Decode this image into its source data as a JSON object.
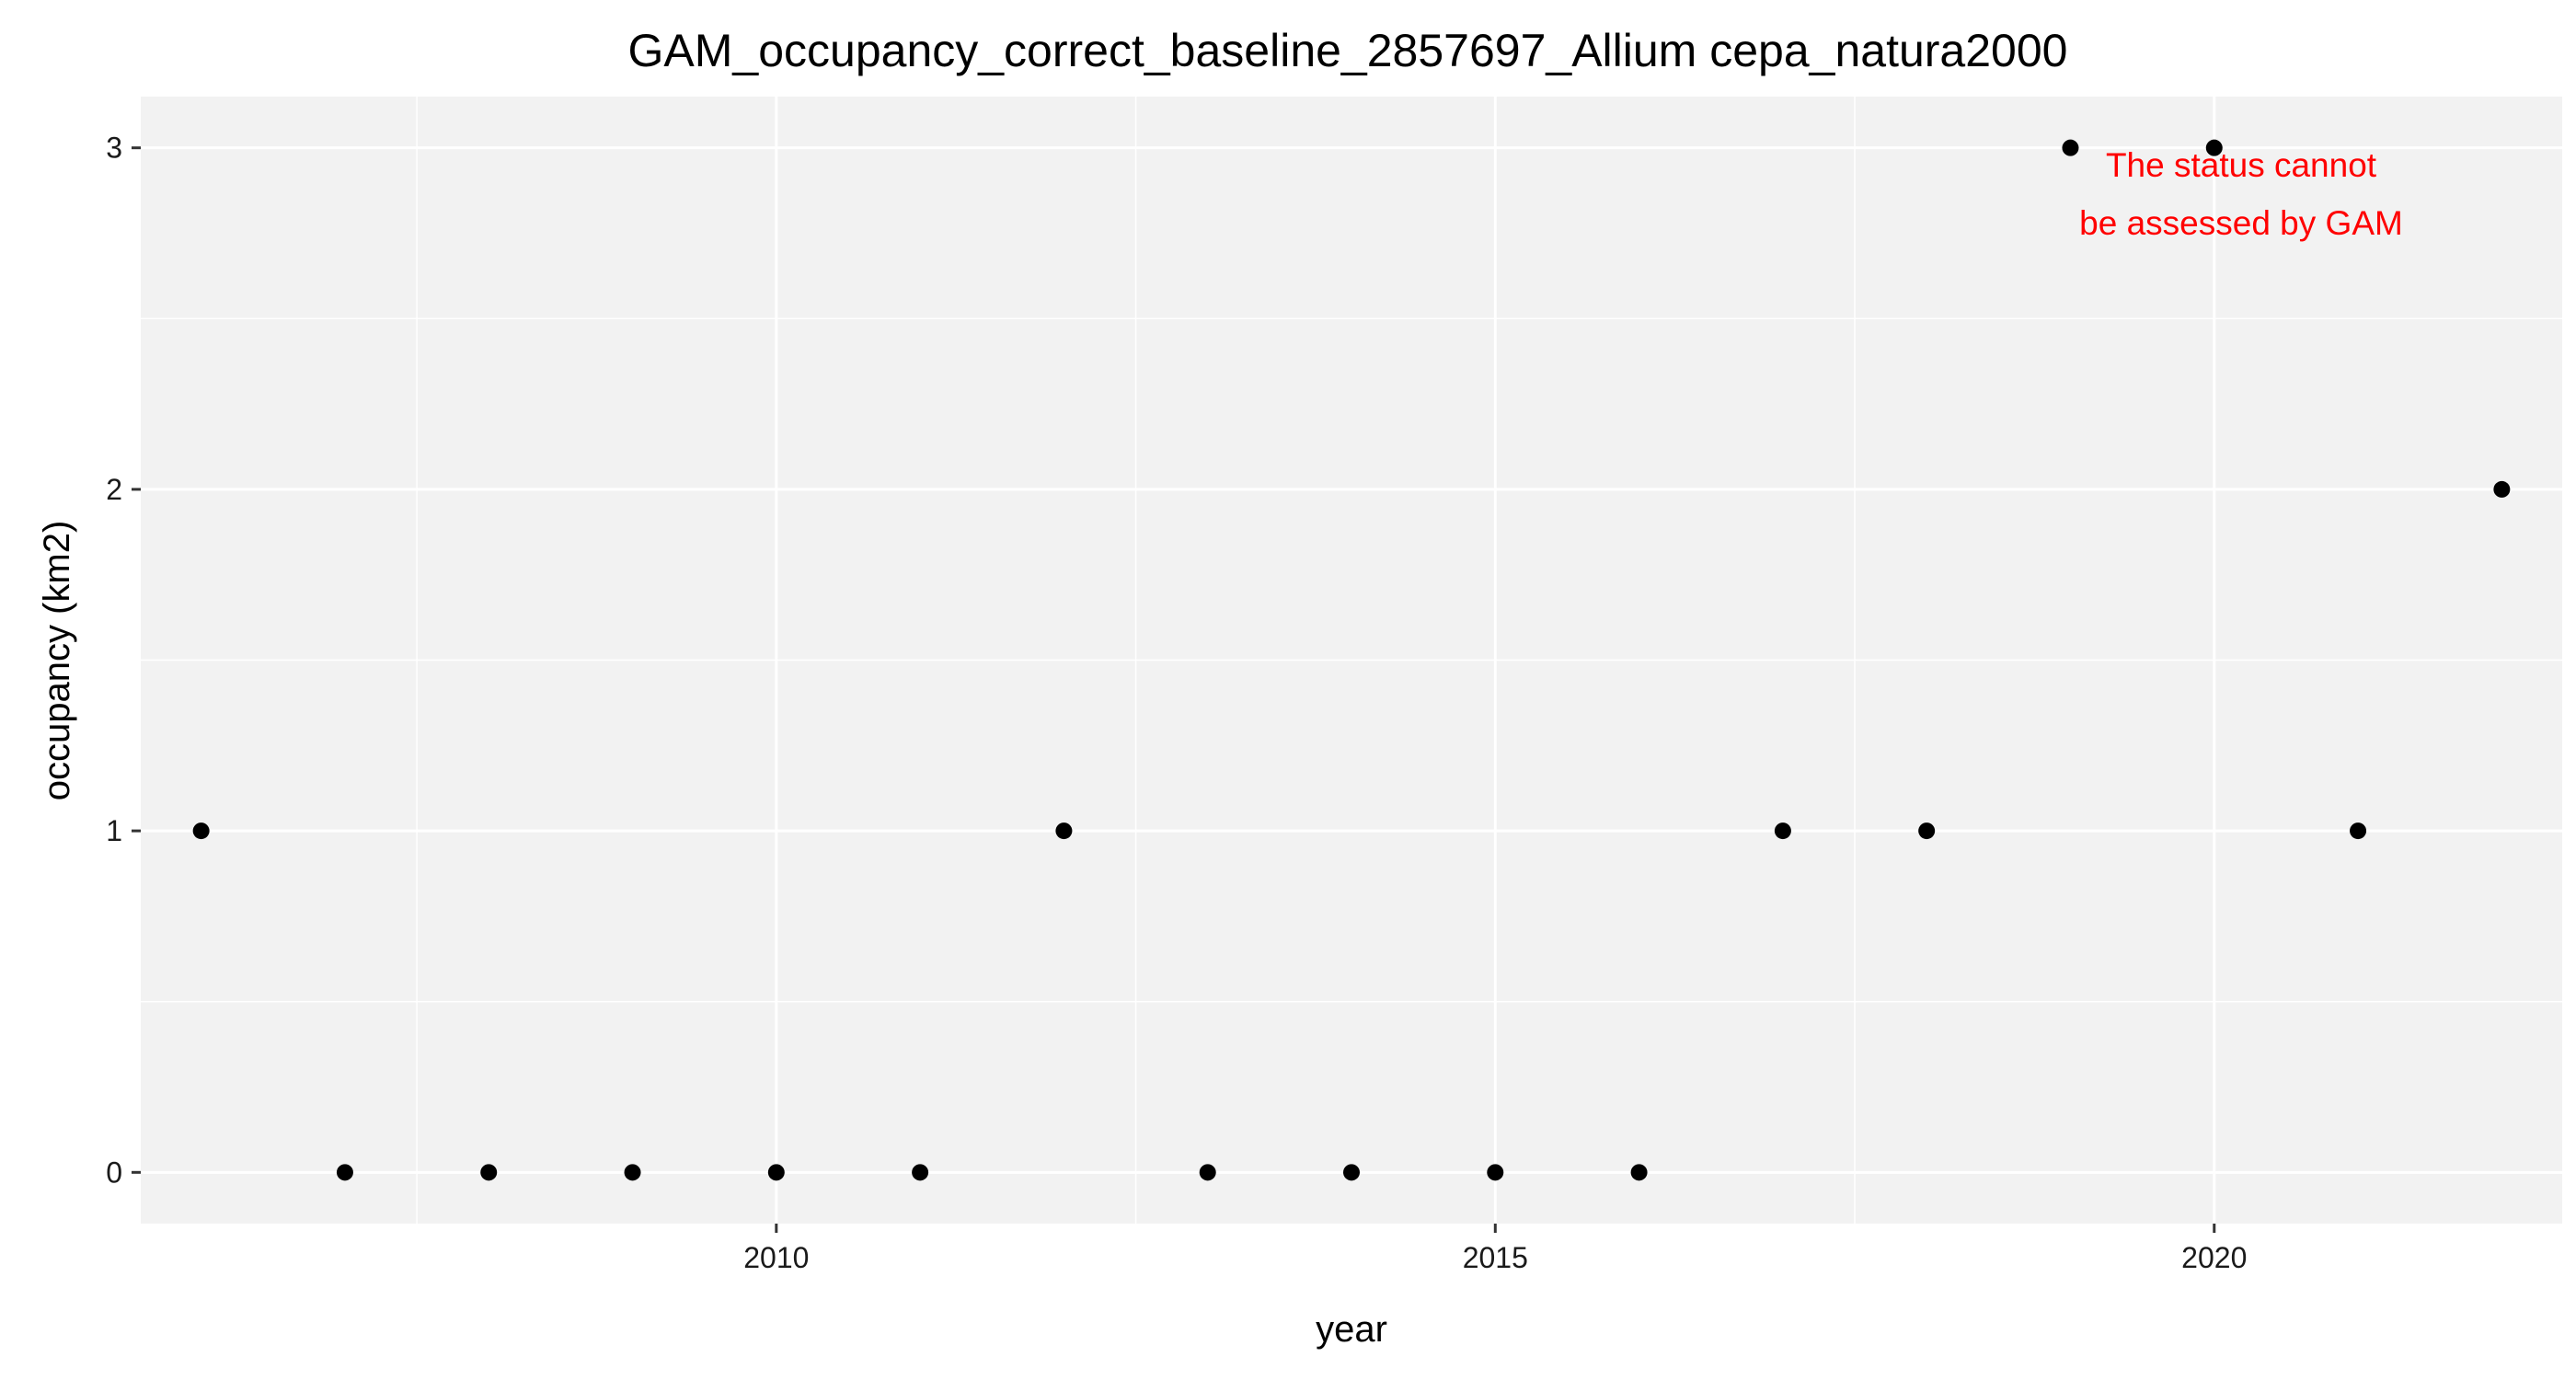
{
  "chart_data": {
    "type": "scatter",
    "title": "GAM_occupancy_correct_baseline_2857697_Allium cepa_natura2000",
    "xlabel": "year",
    "ylabel": "occupancy (km2)",
    "x": [
      2006,
      2007,
      2008,
      2009,
      2010,
      2011,
      2012,
      2013,
      2014,
      2015,
      2016,
      2017,
      2018,
      2019,
      2020,
      2021,
      2022
    ],
    "y": [
      1,
      0,
      0,
      0,
      0,
      0,
      1,
      0,
      0,
      0,
      0,
      1,
      1,
      3,
      3,
      1,
      2
    ],
    "xlim": [
      2005.58,
      2022.42
    ],
    "ylim": [
      -0.15,
      3.15
    ],
    "x_ticks": [
      2010,
      2015,
      2020
    ],
    "x_minor_ticks": [
      2007.5,
      2012.5,
      2017.5,
      2022.5
    ],
    "y_ticks": [
      0,
      1,
      2,
      3
    ],
    "y_minor_ticks": [
      0.5,
      1.5,
      2.5
    ],
    "grid": true,
    "legend": "none",
    "annotation": {
      "lines": [
        "The status cannot",
        "be assessed by GAM"
      ],
      "color": "#ff0000"
    },
    "colors": {
      "panel_background": "#f2f2f2",
      "grid": "#ffffff",
      "point": "#000000"
    }
  }
}
